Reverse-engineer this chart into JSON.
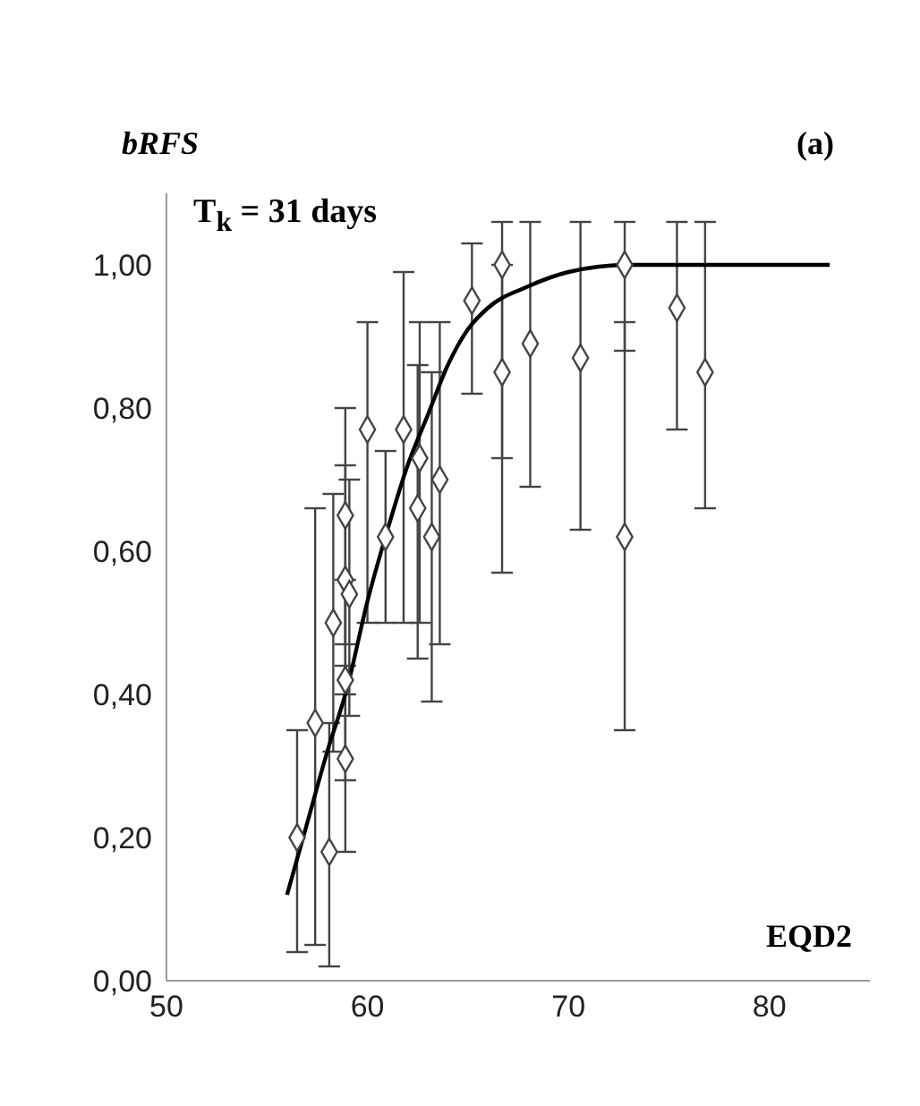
{
  "chart_data": {
    "type": "scatter",
    "ylabel": "bRFS",
    "xlabel": "EQD2",
    "annotations": [
      "(a)",
      "T$_{k}$ = 31 days"
    ],
    "xlim": [
      50,
      85
    ],
    "xticks": [
      50,
      60,
      70,
      80
    ],
    "ylim": [
      0,
      1.1
    ],
    "yticks": [
      {
        "value": 0,
        "label": "0,00"
      },
      {
        "value": 0.2,
        "label": "0,20"
      },
      {
        "value": 0.4,
        "label": "0,40"
      },
      {
        "value": 0.6,
        "label": "0,60"
      },
      {
        "value": 0.8,
        "label": "0,80"
      },
      {
        "value": 1,
        "label": "1,00"
      }
    ],
    "grid": false,
    "legend": false,
    "marker": "diamond",
    "series": [
      {
        "color": "#ffffff",
        "x": [
          56.5,
          57.4,
          58.1,
          58.3,
          58.9,
          58.9,
          59.1,
          58.9,
          58.9,
          60.0,
          60.9,
          61.8,
          62.6,
          62.5,
          63.2,
          63.6,
          65.2,
          66.7,
          66.7,
          68.1,
          70.6,
          72.8,
          72.8,
          75.4,
          76.8
        ],
        "values": [
          0.2,
          0.36,
          0.18,
          0.5,
          0.65,
          0.56,
          0.54,
          0.42,
          0.31,
          0.77,
          0.62,
          0.77,
          0.73,
          0.66,
          0.62,
          0.7,
          0.95,
          1.0,
          0.85,
          0.89,
          0.87,
          1.0,
          0.62,
          0.94,
          0.85
        ],
        "errors": [
          [
            0.04,
            0.35
          ],
          [
            0.05,
            0.66
          ],
          [
            0.02,
            0.36
          ],
          [
            0.32,
            0.68
          ],
          [
            0.47,
            0.8
          ],
          [
            0.4,
            0.72
          ],
          [
            0.37,
            0.7
          ],
          [
            0.28,
            0.56
          ],
          [
            0.18,
            0.44
          ],
          [
            0.5,
            0.92
          ],
          [
            0.5,
            0.74
          ],
          [
            0.5,
            0.99
          ],
          [
            0.5,
            0.92
          ],
          [
            0.45,
            0.86
          ],
          [
            0.39,
            0.85
          ],
          [
            0.47,
            0.92
          ],
          [
            0.82,
            1.03
          ],
          [
            0.73,
            1.06
          ],
          [
            0.57,
            1.0
          ],
          [
            0.69,
            1.06
          ],
          [
            0.63,
            1.06
          ],
          [
            0.88,
            1.06
          ],
          [
            0.35,
            0.92
          ],
          [
            0.77,
            1.06
          ],
          [
            0.66,
            1.06
          ]
        ]
      },
      {
        "type": "line",
        "color": "#000000",
        "line_style": "solid",
        "marker": "none",
        "x": [
          56,
          57,
          58,
          59,
          60,
          61,
          62,
          63,
          64,
          65,
          66,
          68,
          70,
          73,
          83
        ],
        "values": [
          0.12,
          0.22,
          0.32,
          0.41,
          0.53,
          0.63,
          0.72,
          0.79,
          0.86,
          0.91,
          0.94,
          0.97,
          0.99,
          1.0,
          1.0
        ]
      }
    ]
  }
}
